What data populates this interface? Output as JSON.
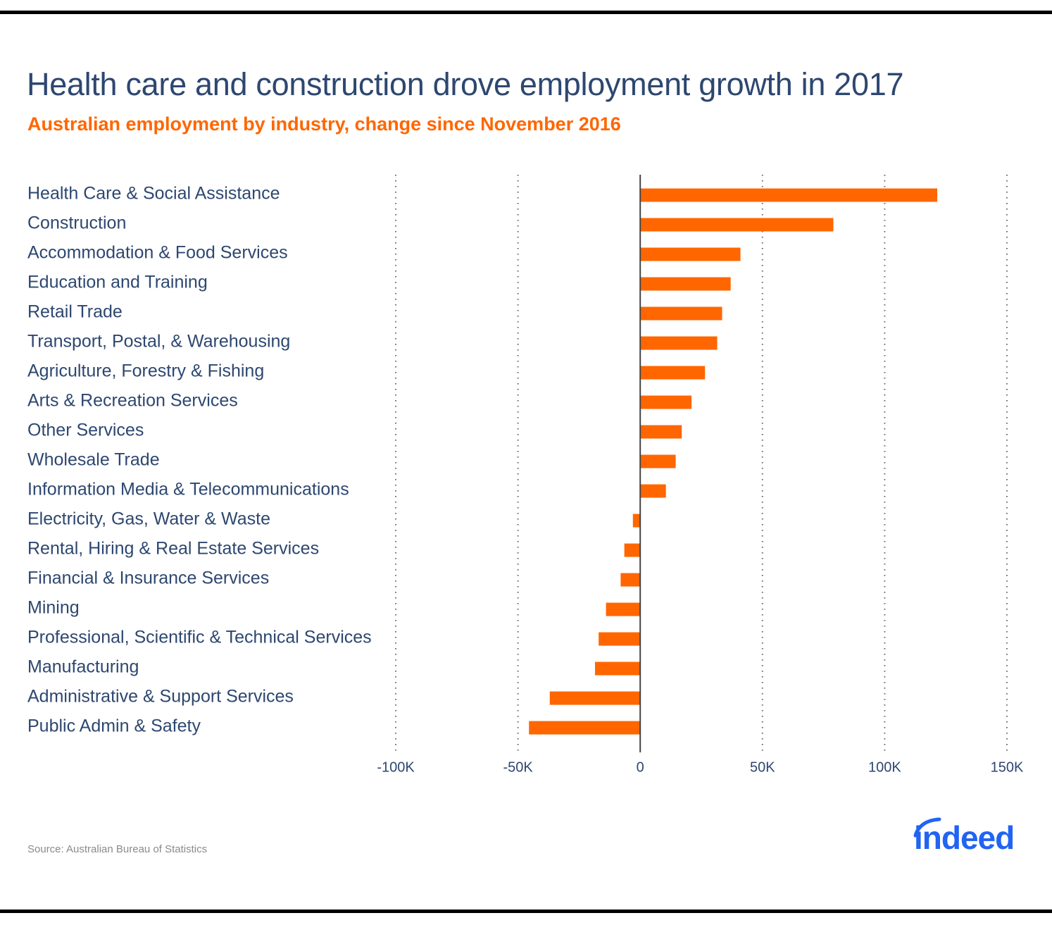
{
  "title": "Health care and construction drove employment growth in 2017",
  "subtitle": "Australian employment by industry, change since November 2016",
  "source": "Source: Australian Bureau of Statistics",
  "logo": {
    "text": "indeed",
    "icon": "indeed-logo-icon",
    "color": "#2164f3"
  },
  "colors": {
    "bar": "#ff6600",
    "title": "#2d4770",
    "subtitle": "#ff6600",
    "axis": "#444444",
    "grid": "#666666"
  },
  "chart_data": {
    "type": "bar",
    "orientation": "horizontal",
    "title": "Health care and construction drove employment growth in 2017",
    "subtitle": "Australian employment by industry, change since November 2016",
    "xlabel": "",
    "ylabel": "",
    "xlim": [
      -100000,
      150000
    ],
    "grid": true,
    "grid_style": "dotted vertical",
    "legend": "none",
    "ticks": [
      {
        "value": -100000,
        "label": "-100K"
      },
      {
        "value": -50000,
        "label": "-50K"
      },
      {
        "value": 0,
        "label": "0"
      },
      {
        "value": 50000,
        "label": "50K"
      },
      {
        "value": 100000,
        "label": "100K"
      },
      {
        "value": 150000,
        "label": "150K"
      }
    ],
    "categories": [
      "Health Care & Social Assistance",
      "Construction",
      "Accommodation & Food Services",
      "Education and Training",
      "Retail Trade",
      "Transport, Postal, & Warehousing",
      "Agriculture, Forestry & Fishing",
      "Arts & Recreation Services",
      "Other Services",
      "Wholesale Trade",
      "Information Media & Telecommunications",
      "Electricity, Gas, Water & Waste",
      "Rental, Hiring & Real Estate Services",
      "Financial & Insurance Services",
      "Mining",
      "Professional, Scientific & Technical Services",
      "Manufacturing",
      "Administrative & Support Services",
      "Public Admin & Safety"
    ],
    "values": [
      121500,
      79000,
      41000,
      37000,
      33500,
      31500,
      26500,
      21000,
      17000,
      14500,
      10500,
      -3000,
      -6500,
      -8000,
      -14000,
      -17000,
      -18500,
      -37000,
      -45500
    ],
    "source": "Source: Australian Bureau of Statistics"
  }
}
